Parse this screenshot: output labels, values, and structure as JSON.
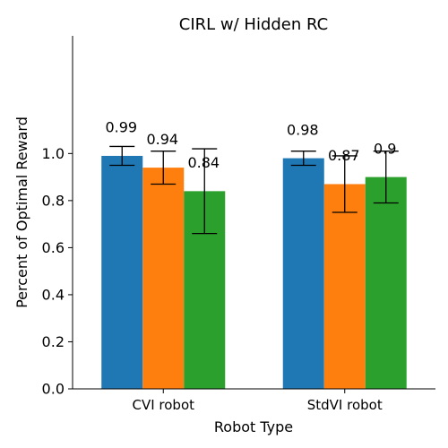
{
  "chart_data": {
    "type": "bar",
    "title": "CIRL w/ Hidden RC",
    "xlabel": "Robot Type",
    "ylabel": "Percent of Optimal Reward",
    "categories": [
      "CVI robot",
      "StdVI robot"
    ],
    "ylim": [
      0,
      1.5
    ],
    "yticks": [
      "0.0",
      "0.2",
      "0.4",
      "0.6",
      "0.8",
      "1.0"
    ],
    "grid": false,
    "legend": "none",
    "series": [
      {
        "color": "#1f77b4",
        "values": [
          0.99,
          0.98
        ],
        "errors": [
          0.04,
          0.03
        ],
        "labels": [
          "0.99",
          "0.98"
        ]
      },
      {
        "color": "#ff7f0e",
        "values": [
          0.94,
          0.87
        ],
        "errors": [
          0.07,
          0.12
        ],
        "labels": [
          "0.94",
          "0.87"
        ]
      },
      {
        "color": "#2ca02c",
        "values": [
          0.84,
          0.9
        ],
        "errors": [
          0.18,
          0.11
        ],
        "labels": [
          "0.84",
          "0.9"
        ]
      }
    ]
  }
}
